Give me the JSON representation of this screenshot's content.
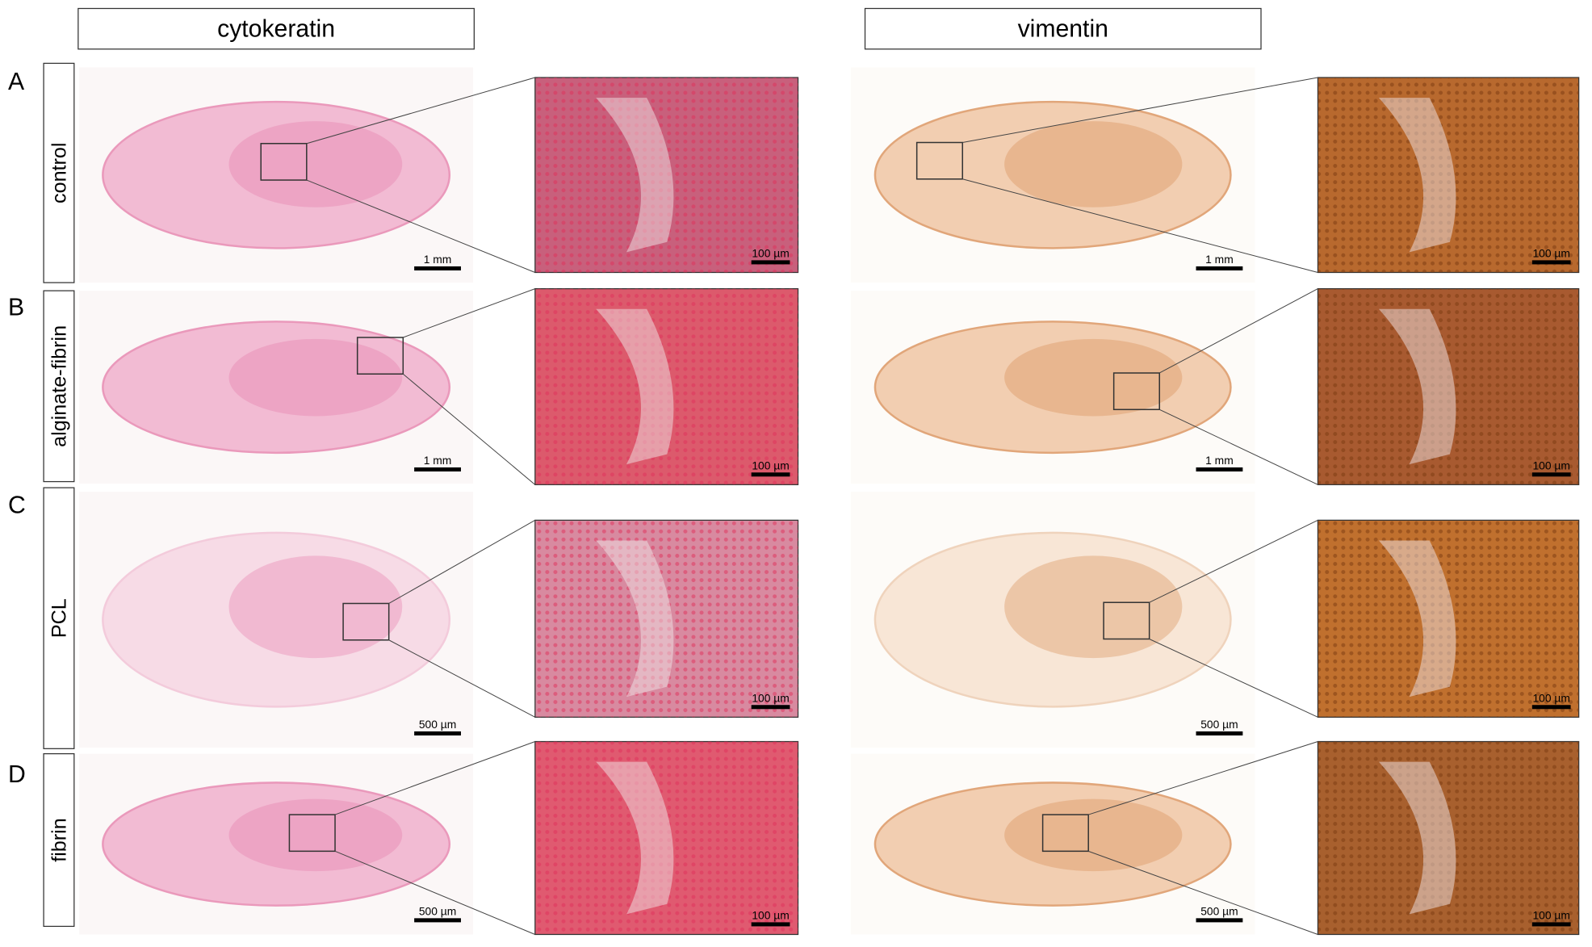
{
  "columns": [
    "cytokeratin",
    "vimentin"
  ],
  "rows": [
    {
      "letter": "A",
      "label": "control",
      "panels": [
        {
          "overview_scale": "1 mm",
          "zoom_scale": "100 µm"
        },
        {
          "overview_scale": "1 mm",
          "zoom_scale": "100 µm"
        }
      ]
    },
    {
      "letter": "B",
      "label": "alginate-fibrin",
      "panels": [
        {
          "overview_scale": "1 mm",
          "zoom_scale": "100 µm"
        },
        {
          "overview_scale": "1 mm",
          "zoom_scale": "100 µm"
        }
      ]
    },
    {
      "letter": "C",
      "label": "PCL",
      "panels": [
        {
          "overview_scale": "500 µm",
          "zoom_scale": "100 µm"
        },
        {
          "overview_scale": "500 µm",
          "zoom_scale": "100 µm"
        }
      ]
    },
    {
      "letter": "D",
      "label": "fibrin",
      "panels": [
        {
          "overview_scale": "500 µm",
          "zoom_scale": "100 µm"
        },
        {
          "overview_scale": "500 µm",
          "zoom_scale": "100 µm"
        }
      ]
    }
  ]
}
